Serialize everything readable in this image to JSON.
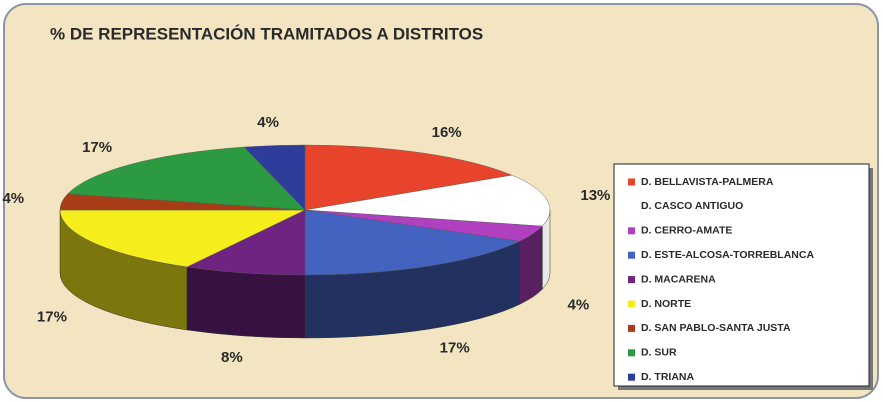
{
  "chart_data": {
    "type": "pie3d",
    "title": "% DE REPRESENTACIÓN TRAMITADOS A DISTRITOS",
    "categories": [
      "D. BELLAVISTA-PALMERA",
      "D. CASCO ANTIGUO",
      "D. CERRO-AMATE",
      "D. ESTE-ALCOSA-TORREBLANCA",
      "D. MACARENA",
      "D. NORTE",
      "D. SAN PABLO-SANTA JUSTA",
      "D. SUR",
      "D. TRIANA"
    ],
    "values": [
      16,
      13,
      4,
      17,
      8,
      17,
      4,
      17,
      4
    ],
    "value_labels": [
      "16%",
      "13%",
      "4%",
      "17%",
      "8%",
      "17%",
      "4%",
      "17%",
      "4%"
    ],
    "colors": [
      "#e8442c",
      "#ffffff",
      "#b040c0",
      "#4462c0",
      "#6e2480",
      "#f6ee1c",
      "#a83c16",
      "#2c9a40",
      "#2e3c9c"
    ],
    "legend": "right"
  }
}
